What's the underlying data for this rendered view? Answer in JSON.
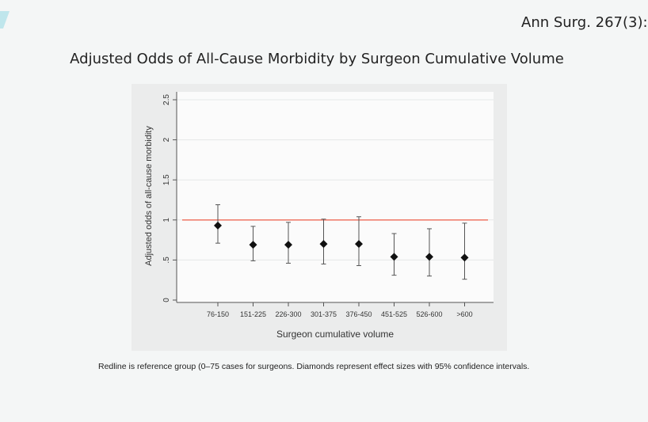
{
  "citation": "Ann Surg. 267(3):",
  "slide_title": "Adjusted Odds of All-Cause Morbidity by Surgeon Cumulative Volume",
  "caption": "Redline is reference group (0–75 cases for surgeons. Diamonds represent effect sizes with 95% confidence intervals.",
  "colors": {
    "reference_line": "#f08070",
    "marker": "#111111",
    "background": "#f4f6f6"
  },
  "chart_data": {
    "type": "scatter",
    "xlabel": "Surgeon cumulative volume",
    "ylabel": "Adjusted odds of all-cause morbidity",
    "categories": [
      "76-150",
      "151-225",
      "226-300",
      "301-375",
      "376-450",
      "451-525",
      "526-600",
      ">600"
    ],
    "values": [
      0.93,
      0.69,
      0.69,
      0.7,
      0.7,
      0.54,
      0.54,
      0.53
    ],
    "ci_lower": [
      0.71,
      0.49,
      0.46,
      0.45,
      0.43,
      0.31,
      0.3,
      0.26
    ],
    "ci_upper": [
      1.19,
      0.92,
      0.97,
      1.01,
      1.04,
      0.83,
      0.89,
      0.96
    ],
    "reference_line": 1,
    "ylim": [
      0,
      2.5
    ],
    "yticks": [
      0,
      0.5,
      1,
      1.5,
      2,
      2.5
    ],
    "ytick_labels": [
      "0",
      ".5",
      "1",
      "1.5",
      "2",
      "2.5"
    ],
    "grid": true,
    "marker": "diamond"
  }
}
